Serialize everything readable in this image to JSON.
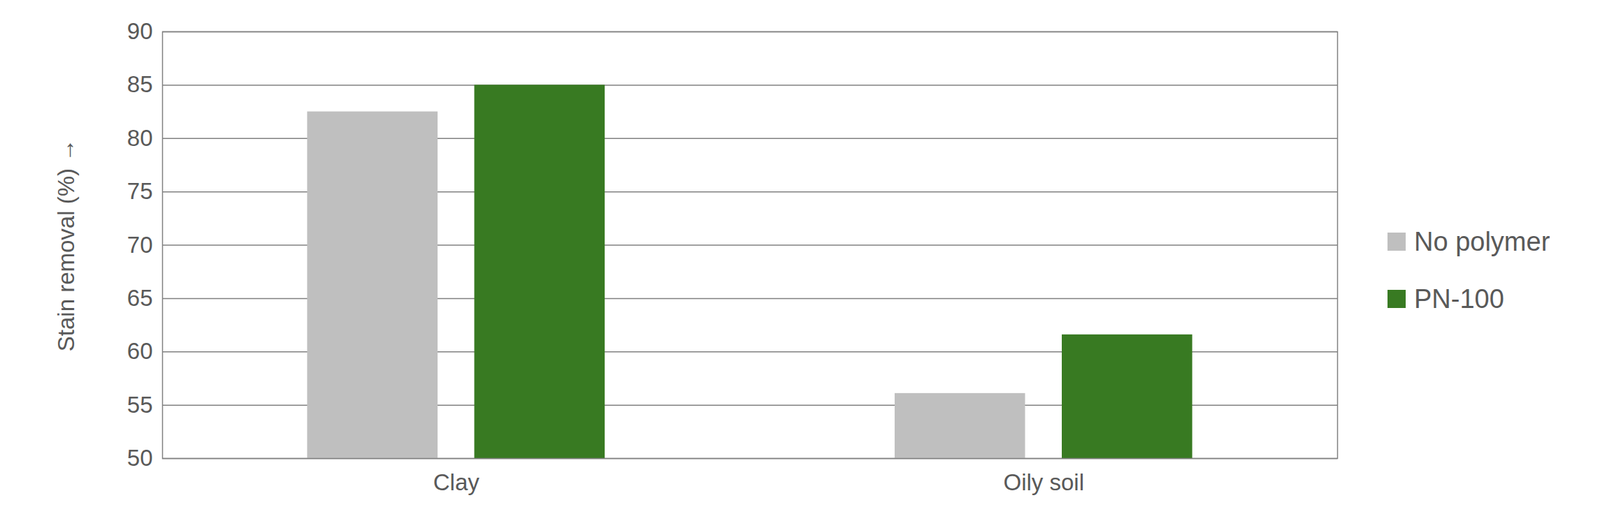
{
  "chart_data": {
    "type": "bar",
    "categories": [
      "Clay",
      "Oily soil"
    ],
    "series": [
      {
        "name": "No polymer",
        "color": "#bfbfbf",
        "values": [
          82.5,
          56.1
        ]
      },
      {
        "name": "PN-100",
        "color": "#387a22",
        "values": [
          85,
          61.6
        ]
      }
    ],
    "y_label": "Stain removal (%)",
    "ylim": [
      50,
      90
    ],
    "yticks": [
      50,
      55,
      60,
      65,
      70,
      75,
      80,
      85,
      90
    ],
    "grid": true,
    "legend": "right"
  }
}
